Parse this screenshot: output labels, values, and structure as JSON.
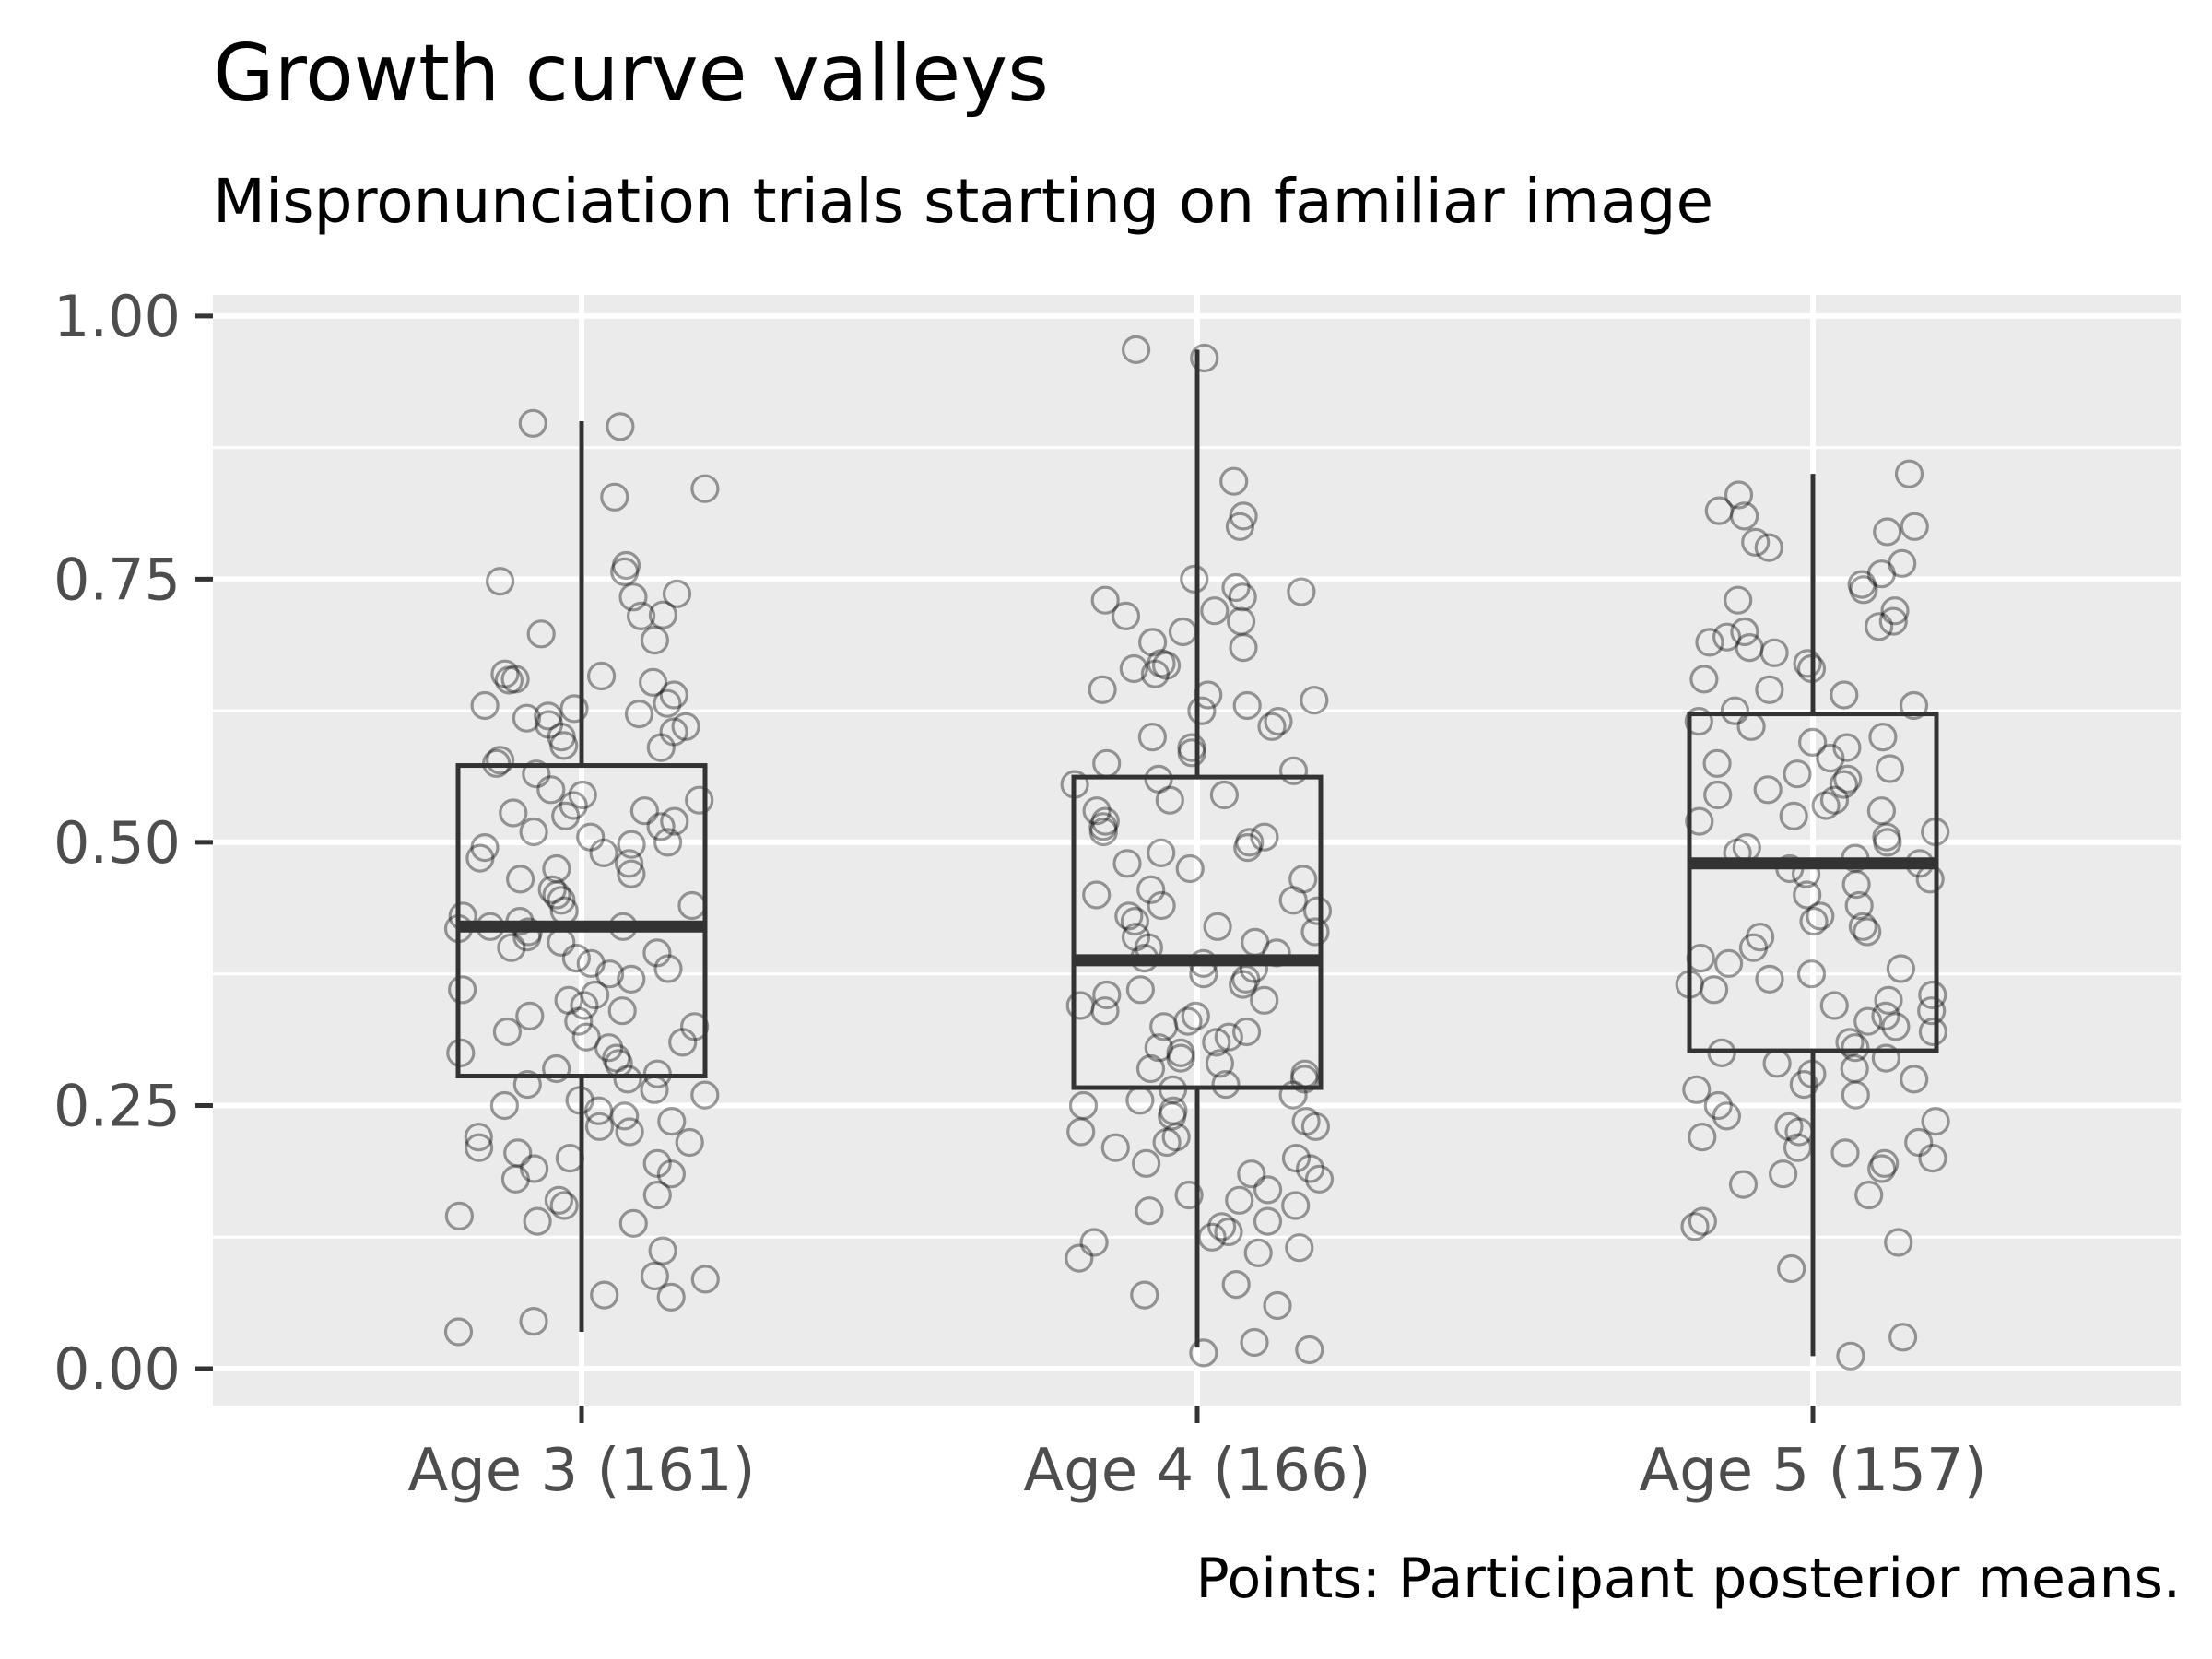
{
  "chart_data": {
    "type": "box",
    "title": "Growth curve valleys",
    "subtitle": "Mispronunciation trials starting on familiar image",
    "caption": "Points: Participant posterior means.",
    "xlabel": "",
    "ylabel": "",
    "ylim": [
      -0.035,
      1.02
    ],
    "y_ticks": [
      "0.00",
      "0.25",
      "0.50",
      "0.75",
      "1.00"
    ],
    "y_tick_values": [
      0,
      0.25,
      0.5,
      0.75,
      1.0
    ],
    "categories": [
      "Age 3 (161)",
      "Age 4 (166)",
      "Age 5 (157)"
    ],
    "grid": true,
    "colors": {
      "panel": "#ebebeb",
      "grid": "#ffffff",
      "box": "#333333",
      "point": "#000000",
      "axis_text": "#4d4d4d"
    },
    "boxes": [
      {
        "category": "Age 3 (161)",
        "min": 0.035,
        "q1": 0.278,
        "median": 0.42,
        "q3": 0.573,
        "max": 0.9
      },
      {
        "category": "Age 4 (166)",
        "min": 0.02,
        "q1": 0.267,
        "median": 0.388,
        "q3": 0.562,
        "max": 0.968
      },
      {
        "category": "Age 5 (157)",
        "min": 0.012,
        "q1": 0.302,
        "median": 0.48,
        "q3": 0.622,
        "max": 0.85
      }
    ],
    "points": [
      [
        0.895,
        0.898,
        0.828,
        0.836,
        0.763,
        0.757,
        0.748,
        0.736,
        0.733,
        0.716,
        0.715,
        0.698,
        0.692,
        0.66,
        0.658,
        0.655,
        0.654,
        0.652,
        0.64,
        0.632,
        0.63,
        0.627,
        0.622,
        0.62,
        0.618,
        0.612,
        0.61,
        0.605,
        0.6,
        0.592,
        0.59,
        0.578,
        0.575,
        0.565,
        0.55,
        0.545,
        0.54,
        0.535,
        0.53,
        0.528,
        0.525,
        0.52,
        0.515,
        0.51,
        0.505,
        0.5,
        0.498,
        0.495,
        0.49,
        0.485,
        0.48,
        0.475,
        0.47,
        0.465,
        0.455,
        0.45,
        0.445,
        0.44,
        0.435,
        0.43,
        0.425,
        0.42,
        0.42,
        0.418,
        0.415,
        0.41,
        0.405,
        0.4,
        0.395,
        0.39,
        0.385,
        0.38,
        0.375,
        0.37,
        0.36,
        0.355,
        0.35,
        0.345,
        0.34,
        0.335,
        0.33,
        0.325,
        0.32,
        0.315,
        0.31,
        0.305,
        0.3,
        0.295,
        0.29,
        0.285,
        0.28,
        0.275,
        0.27,
        0.265,
        0.26,
        0.255,
        0.25,
        0.245,
        0.24,
        0.235,
        0.23,
        0.225,
        0.22,
        0.215,
        0.21,
        0.205,
        0.2,
        0.195,
        0.19,
        0.185,
        0.18,
        0.165,
        0.16,
        0.155,
        0.145,
        0.14,
        0.138,
        0.112,
        0.088,
        0.085,
        0.07,
        0.068,
        0.045,
        0.035
      ],
      [
        0.968,
        0.96,
        0.843,
        0.81,
        0.8,
        0.75,
        0.742,
        0.738,
        0.733,
        0.73,
        0.72,
        0.715,
        0.71,
        0.7,
        0.69,
        0.685,
        0.67,
        0.668,
        0.665,
        0.66,
        0.645,
        0.64,
        0.635,
        0.63,
        0.625,
        0.615,
        0.61,
        0.6,
        0.59,
        0.585,
        0.575,
        0.568,
        0.56,
        0.555,
        0.545,
        0.54,
        0.53,
        0.52,
        0.515,
        0.51,
        0.505,
        0.5,
        0.495,
        0.49,
        0.48,
        0.475,
        0.465,
        0.455,
        0.45,
        0.445,
        0.44,
        0.435,
        0.43,
        0.425,
        0.42,
        0.415,
        0.41,
        0.405,
        0.4,
        0.395,
        0.39,
        0.385,
        0.38,
        0.375,
        0.37,
        0.365,
        0.36,
        0.355,
        0.35,
        0.345,
        0.34,
        0.335,
        0.33,
        0.325,
        0.32,
        0.315,
        0.31,
        0.305,
        0.3,
        0.295,
        0.29,
        0.285,
        0.28,
        0.275,
        0.27,
        0.265,
        0.26,
        0.255,
        0.25,
        0.245,
        0.24,
        0.235,
        0.23,
        0.225,
        0.22,
        0.215,
        0.21,
        0.2,
        0.195,
        0.19,
        0.185,
        0.18,
        0.17,
        0.165,
        0.16,
        0.155,
        0.15,
        0.14,
        0.135,
        0.13,
        0.125,
        0.12,
        0.115,
        0.11,
        0.105,
        0.08,
        0.07,
        0.06,
        0.025,
        0.018,
        0.015
      ],
      [
        0.85,
        0.83,
        0.815,
        0.81,
        0.8,
        0.795,
        0.785,
        0.78,
        0.765,
        0.755,
        0.745,
        0.74,
        0.73,
        0.72,
        0.71,
        0.705,
        0.7,
        0.695,
        0.69,
        0.685,
        0.68,
        0.67,
        0.665,
        0.655,
        0.645,
        0.64,
        0.63,
        0.625,
        0.615,
        0.61,
        0.6,
        0.595,
        0.59,
        0.58,
        0.575,
        0.57,
        0.565,
        0.56,
        0.555,
        0.55,
        0.545,
        0.54,
        0.535,
        0.53,
        0.525,
        0.52,
        0.51,
        0.505,
        0.5,
        0.495,
        0.49,
        0.485,
        0.48,
        0.475,
        0.47,
        0.465,
        0.46,
        0.45,
        0.44,
        0.43,
        0.425,
        0.42,
        0.415,
        0.41,
        0.4,
        0.39,
        0.385,
        0.38,
        0.375,
        0.37,
        0.365,
        0.36,
        0.355,
        0.35,
        0.345,
        0.34,
        0.335,
        0.33,
        0.325,
        0.32,
        0.31,
        0.305,
        0.3,
        0.295,
        0.29,
        0.285,
        0.28,
        0.275,
        0.27,
        0.265,
        0.26,
        0.25,
        0.24,
        0.235,
        0.23,
        0.225,
        0.22,
        0.215,
        0.21,
        0.205,
        0.2,
        0.195,
        0.19,
        0.185,
        0.175,
        0.165,
        0.14,
        0.135,
        0.12,
        0.095,
        0.03,
        0.012
      ]
    ]
  }
}
